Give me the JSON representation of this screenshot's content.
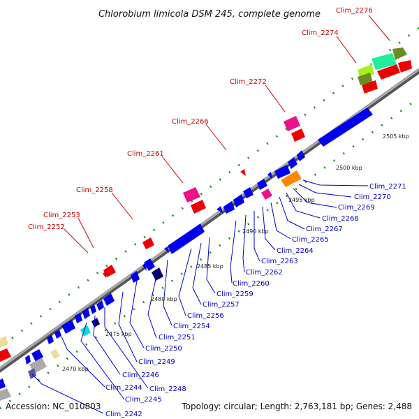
{
  "title": "Chlorobium limicola DSM 245, complete genome",
  "footer": {
    "accession": "Accession: NC_010803",
    "topology": "Topology: circular; Length: 2,763,181 bp; Genes: 2,488"
  },
  "ticks": [
    "2470 kbp",
    "2475 kbp",
    "2480 kbp",
    "2485 kbp",
    "2490 kbp",
    "2495 kbp",
    "2500 kbp",
    "2505 kbp"
  ],
  "forward_labels": [
    "Clim_2252",
    "Clim_2253",
    "Clim_2258",
    "Clim_2261",
    "Clim_2266",
    "Clim_2272",
    "Clim_2274",
    "Clim_2276"
  ],
  "reverse_labels": [
    "Clim_2242",
    "Clim_2244",
    "Clim_2245",
    "Clim_2246",
    "Clim_2248",
    "Clim_2249",
    "Clim_2250",
    "Clim_2251",
    "Clim_2254",
    "Clim_2256",
    "Clim_2257",
    "Clim_2259",
    "Clim_2260",
    "Clim_2262",
    "Clim_2263",
    "Clim_2264",
    "Clim_2265",
    "Clim_2267",
    "Clim_2268",
    "Clim_2269",
    "Clim_2270",
    "Clim_2271"
  ],
  "colors": {
    "forward_gene": "#ee0000",
    "reverse_gene": "#0000ee",
    "label_forward": "#cc0000",
    "label_reverse": "#0000cc",
    "backbone": "#888888",
    "dots": "#228b22"
  }
}
